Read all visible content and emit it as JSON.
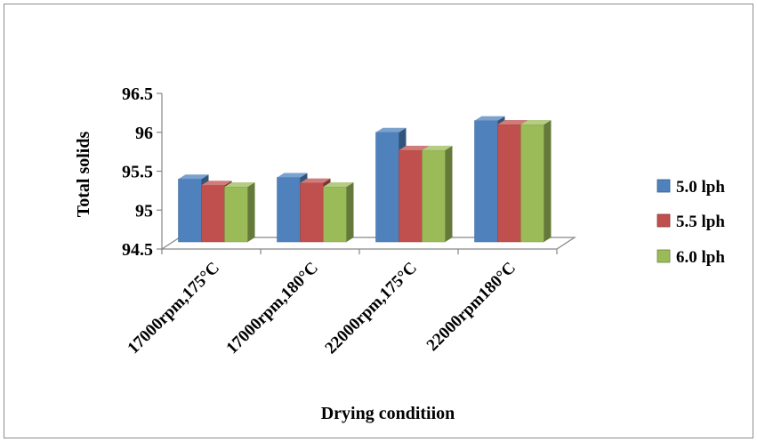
{
  "chart_data": {
    "type": "bar",
    "title": "",
    "xlabel": "Drying conditiion",
    "ylabel": "Total solids",
    "categories": [
      "17000rpm,175°C",
      "17000rpm,180°C",
      "22000rpm,175°C",
      "22000rpm180°C"
    ],
    "series": [
      {
        "name": "5.0 lph",
        "values": [
          95.4,
          95.42,
          96.0,
          96.15
        ],
        "color": "#4f81bd"
      },
      {
        "name": "5.5 lph",
        "values": [
          95.32,
          95.35,
          95.77,
          96.1
        ],
        "color": "#c0504d"
      },
      {
        "name": "6.0 lph",
        "values": [
          95.3,
          95.3,
          95.77,
          96.1
        ],
        "color": "#9bbb59"
      }
    ],
    "yticks": [
      "94.5",
      "95",
      "95.5",
      "96",
      "96.5"
    ],
    "ylim": [
      94.5,
      96.5
    ],
    "grid": false,
    "legend_position": "right",
    "style": "3d-clustered-column"
  }
}
